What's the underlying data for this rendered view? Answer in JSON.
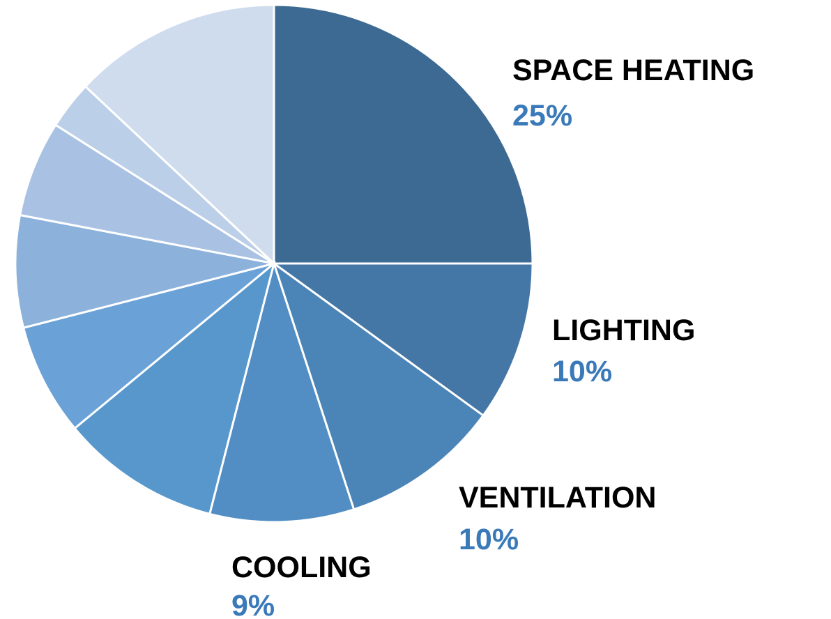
{
  "chart_data": {
    "type": "pie",
    "categories": [
      "SPACE HEATING",
      "LIGHTING",
      "VENTILATION",
      "COOLING",
      null,
      null,
      null,
      null,
      null,
      null
    ],
    "values": [
      25,
      10,
      10,
      9,
      10,
      7,
      7,
      6,
      3,
      13
    ],
    "value_labels": [
      "25%",
      "10%",
      "10%",
      "9%",
      null,
      null,
      null,
      null,
      null,
      null
    ],
    "colors": [
      "#3d6a93",
      "#4476a6",
      "#4b84b6",
      "#528ec4",
      "#5797cc",
      "#6aa1d6",
      "#8cb2dc",
      "#a9c2e4",
      "#bccfe8",
      "#cfdcee"
    ]
  }
}
